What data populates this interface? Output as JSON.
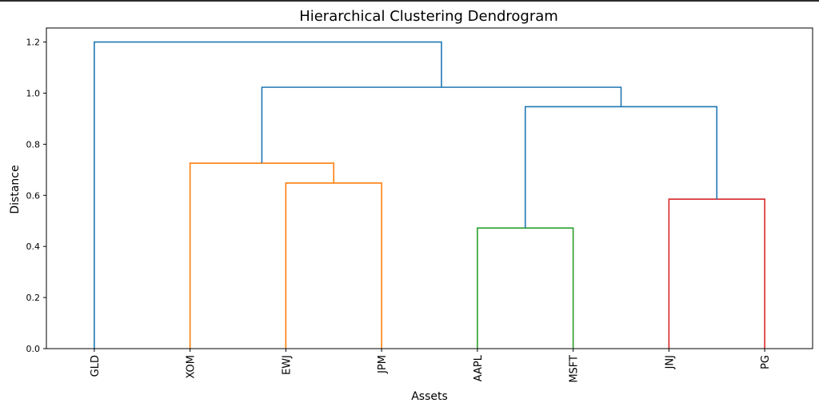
{
  "chart_data": {
    "type": "dendrogram",
    "title": "Hierarchical Clustering Dendrogram",
    "xlabel": "Assets",
    "ylabel": "Distance",
    "ylim": [
      0,
      1.255
    ],
    "yticks": [
      {
        "value": 0.0,
        "label": "0.0"
      },
      {
        "value": 0.2,
        "label": "0.2"
      },
      {
        "value": 0.4,
        "label": "0.4"
      },
      {
        "value": 0.6,
        "label": "0.6"
      },
      {
        "value": 0.8,
        "label": "0.8"
      },
      {
        "value": 1.0,
        "label": "1.0"
      },
      {
        "value": 1.2,
        "label": "1.2"
      }
    ],
    "leaves": [
      "GLD",
      "XOM",
      "EWJ",
      "JPM",
      "AAPL",
      "MSFT",
      "JNJ",
      "PG"
    ],
    "colors": {
      "orange": "#ff7f0e",
      "green": "#2ca02c",
      "red": "#d62728",
      "blue": "#1f77b4"
    },
    "merges": [
      {
        "name": "EWJ+JPM",
        "left": "EWJ",
        "right": "JPM",
        "height": 0.648,
        "color": "orange"
      },
      {
        "name": "XOM+EWJ+JPM",
        "left": "XOM",
        "right": "EWJ+JPM",
        "height": 0.726,
        "color": "orange"
      },
      {
        "name": "AAPL+MSFT",
        "left": "AAPL",
        "right": "MSFT",
        "height": 0.472,
        "color": "green"
      },
      {
        "name": "JNJ+PG",
        "left": "JNJ",
        "right": "PG",
        "height": 0.585,
        "color": "red"
      },
      {
        "name": "AAPL+MSFT+JNJ+PG",
        "left": "AAPL+MSFT",
        "right": "JNJ+PG",
        "height": 0.947,
        "color": "blue"
      },
      {
        "name": "XOM..PG",
        "left": "XOM+EWJ+JPM",
        "right": "AAPL+MSFT+JNJ+PG",
        "height": 1.023,
        "color": "blue"
      },
      {
        "name": "ALL",
        "left": "GLD",
        "right": "XOM..PG",
        "height": 1.2,
        "color": "blue"
      }
    ]
  }
}
